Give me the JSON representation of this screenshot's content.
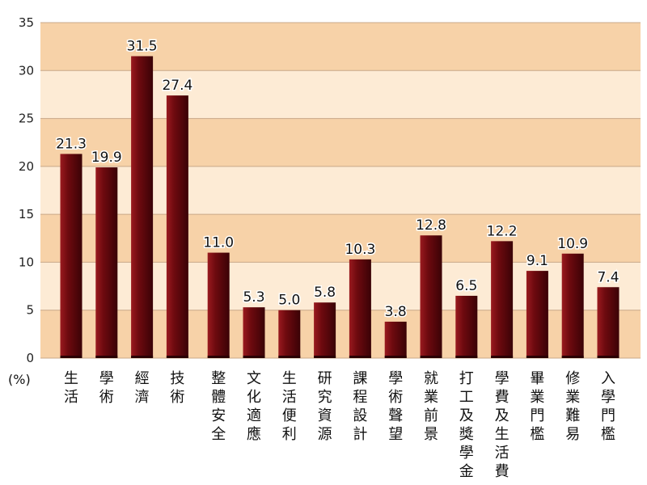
{
  "chart_data": {
    "type": "bar",
    "unit_label": "(%)",
    "ylim": [
      0,
      35
    ],
    "yticks": [
      0,
      5,
      10,
      15,
      20,
      25,
      30,
      35
    ],
    "categories": [
      "生活",
      "學術",
      "經濟",
      "技術",
      "整體安全",
      "文化適應",
      "生活便利",
      "研究資源",
      "課程設計",
      "學術聲望",
      "就業前景",
      "打工及獎學金",
      "學費及生活費",
      "畢業門檻",
      "修業難易",
      "入學門檻"
    ],
    "values": [
      21.3,
      19.9,
      31.5,
      27.4,
      11.0,
      5.3,
      5.0,
      5.8,
      10.3,
      3.8,
      12.8,
      6.5,
      12.2,
      9.1,
      10.9,
      7.4
    ],
    "value_labels": [
      "21.3",
      "19.9",
      "31.5",
      "27.4",
      "11.0",
      "5.3",
      "5.0",
      "5.8",
      "10.3",
      "3.8",
      "12.8",
      "6.5",
      "12.2",
      "9.1",
      "10.9",
      "7.4"
    ],
    "grid": true,
    "colors": {
      "bar": "#6e0a0f",
      "bar_highlight": "#9a1a1f",
      "band_dark": "#f7d2a8",
      "band_light": "#fdebd5",
      "gridline": "#c8a888"
    }
  }
}
